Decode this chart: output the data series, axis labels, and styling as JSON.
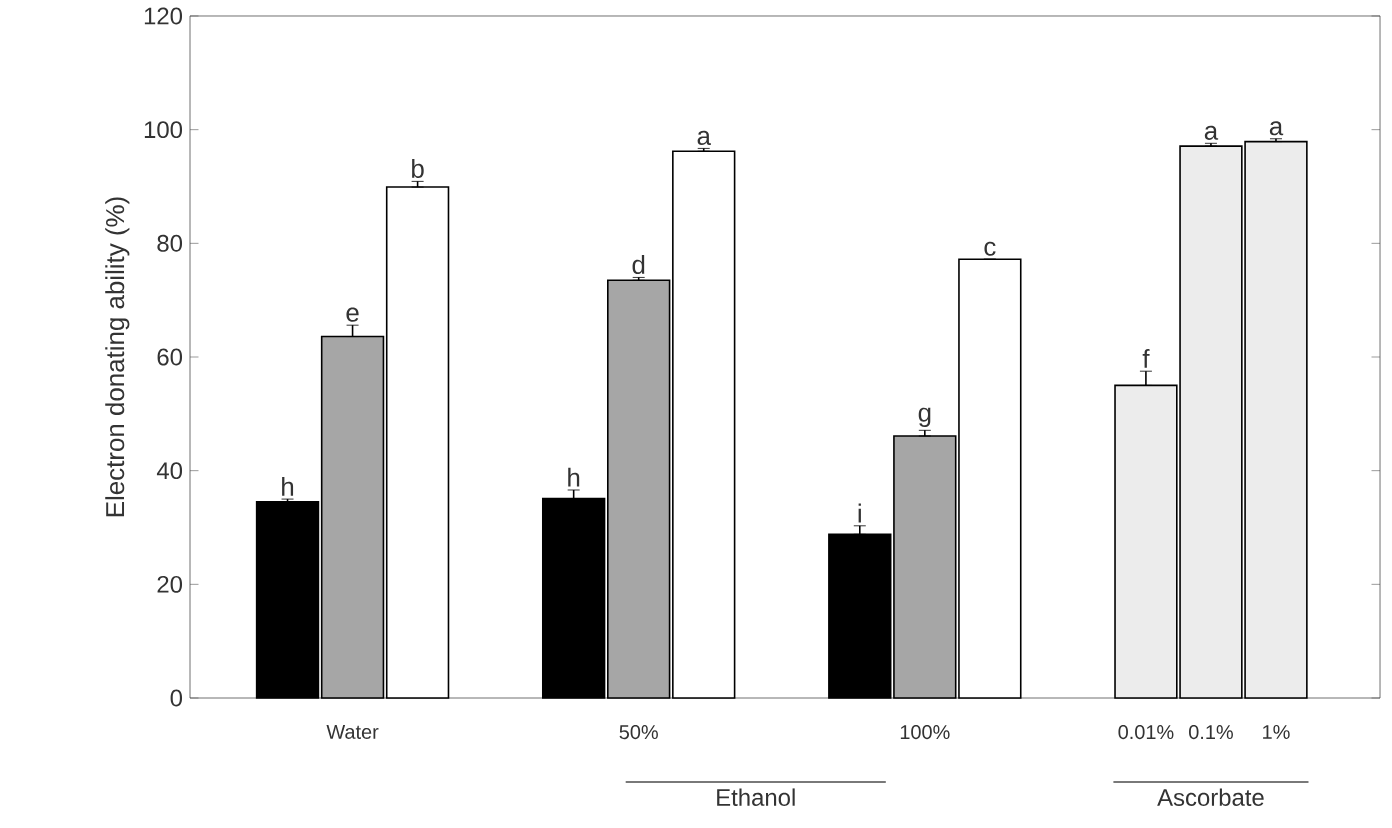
{
  "chart_data": {
    "type": "bar",
    "ylabel": "Electron donating ability (%)",
    "categories": [
      "Water",
      "50%",
      "100%",
      "0.01%",
      "0.1%",
      "1%"
    ],
    "series": [
      {
        "color": "#000000",
        "values": [
          34.5,
          35.1,
          28.8,
          null,
          null,
          null
        ],
        "errors": [
          [
            34.5,
            35.0
          ],
          [
            35.1,
            36.6
          ],
          [
            28.8,
            30.3
          ],
          null,
          null,
          null
        ],
        "value_labels": [
          "h",
          "h",
          "i",
          null,
          null,
          null
        ]
      },
      {
        "color": "#a6a6a6",
        "values": [
          63.6,
          73.5,
          46.1,
          null,
          null,
          null
        ],
        "errors": [
          [
            63.6,
            65.6
          ],
          [
            73.5,
            74.0
          ],
          [
            46.1,
            47.1
          ],
          null,
          null,
          null
        ],
        "value_labels": [
          "e",
          "d",
          "g",
          null,
          null,
          null
        ]
      },
      {
        "color": "#ffffff",
        "values": [
          89.9,
          96.2,
          77.2,
          null,
          null,
          null
        ],
        "errors": [
          [
            89.9,
            90.9
          ],
          [
            96.2,
            96.7
          ],
          [
            77.2,
            77.2
          ],
          null,
          null,
          null
        ],
        "value_labels": [
          "b",
          "a",
          "c",
          null,
          null,
          null
        ]
      },
      {
        "color": "#ececec",
        "values": [
          null,
          null,
          null,
          55.0,
          97.1,
          97.9
        ],
        "errors": [
          null,
          null,
          null,
          [
            55.0,
            57.5
          ],
          [
            97.1,
            97.6
          ],
          [
            97.9,
            98.4
          ]
        ],
        "value_labels": [
          null,
          null,
          null,
          "f",
          "a",
          "a"
        ]
      }
    ],
    "ylim": [
      0,
      120
    ],
    "yticks": [
      0,
      20,
      40,
      60,
      80,
      100,
      120
    ],
    "annotations": [
      "Ethanol",
      "Ascorbate"
    ]
  }
}
